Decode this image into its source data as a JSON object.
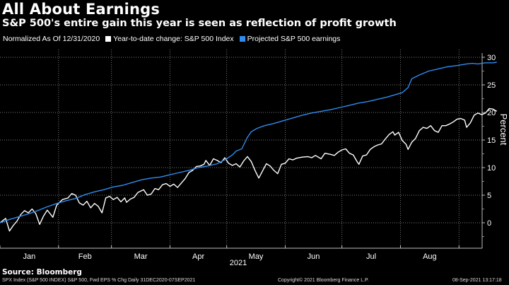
{
  "header": {
    "title": "All About Earnings",
    "subtitle": "S&P 500's entire gain this year is seen as reflection of profit growth"
  },
  "legend": {
    "prefix": "Normalized As Of 12/31/2020",
    "items": [
      {
        "label": "Year-to-date change: S&P 500 Index",
        "color": "#ffffff"
      },
      {
        "label": "Projected S&P 500 earnings",
        "color": "#2f8cf0"
      }
    ]
  },
  "footer": {
    "source": "Source: Bloomberg",
    "series_desc": "SPX Index (S&P 500 INDEX) S&P 500, Fwd EPS % Chg  Daily 31DEC2020-07SEP2021",
    "copyright": "Copyright© 2021 Bloomberg Finance L.P.",
    "timestamp": "08-Sep-2021 13:17:18"
  },
  "chart_data": {
    "type": "line",
    "title": "All About Earnings",
    "subtitle": "S&P 500's entire gain this year is seen as reflection of profit growth",
    "xlabel": "2021",
    "ylabel": "Percent",
    "x_tick_labels": [
      "Jan",
      "Feb",
      "Mar",
      "Apr",
      "May",
      "Jun",
      "Jul",
      "Aug"
    ],
    "y_ticks": [
      0,
      5,
      10,
      15,
      20,
      25,
      30
    ],
    "ylim": [
      -3.5,
      31.5
    ],
    "x_range_days": [
      0,
      250
    ],
    "grid": true,
    "legend_position": "top-left",
    "y_axis_side": "right",
    "series": [
      {
        "name": "Year-to-date change: S&P 500 Index",
        "color": "#ffffff",
        "points": [
          [
            0,
            0
          ],
          [
            3,
            0.8
          ],
          [
            5,
            -1.5
          ],
          [
            7,
            -0.5
          ],
          [
            9,
            0.3
          ],
          [
            11,
            1.5
          ],
          [
            13,
            2.2
          ],
          [
            15,
            1.8
          ],
          [
            17,
            2.5
          ],
          [
            19,
            1.6
          ],
          [
            21,
            -0.3
          ],
          [
            23,
            1.2
          ],
          [
            25,
            2.3
          ],
          [
            28,
            1.0
          ],
          [
            30,
            3.2
          ],
          [
            33,
            4.2
          ],
          [
            36,
            4.5
          ],
          [
            38,
            5.3
          ],
          [
            40,
            5.0
          ],
          [
            42,
            3.6
          ],
          [
            44,
            3.2
          ],
          [
            46,
            3.9
          ],
          [
            48,
            2.7
          ],
          [
            50,
            3.5
          ],
          [
            52,
            3.0
          ],
          [
            54,
            1.8
          ],
          [
            56,
            4.5
          ],
          [
            58,
            4.8
          ],
          [
            60,
            4.2
          ],
          [
            62,
            4.6
          ],
          [
            64,
            3.8
          ],
          [
            66,
            4.5
          ],
          [
            67,
            3.7
          ],
          [
            69,
            4.3
          ],
          [
            71,
            4.6
          ],
          [
            73,
            5.5
          ],
          [
            76,
            6.0
          ],
          [
            78,
            5.0
          ],
          [
            80,
            5.2
          ],
          [
            82,
            6.2
          ],
          [
            84,
            6.0
          ],
          [
            86,
            6.9
          ],
          [
            88,
            7.1
          ],
          [
            90,
            6.6
          ],
          [
            92,
            7.0
          ],
          [
            94,
            6.4
          ],
          [
            96,
            7.2
          ],
          [
            98,
            8.0
          ],
          [
            100,
            9.1
          ],
          [
            102,
            9.5
          ],
          [
            104,
            10.2
          ],
          [
            106,
            10.3
          ],
          [
            108,
            10.6
          ],
          [
            109,
            11.3
          ],
          [
            111,
            10.4
          ],
          [
            113,
            11.6
          ],
          [
            115,
            11.3
          ],
          [
            117,
            10.9
          ],
          [
            119,
            11.8
          ],
          [
            121,
            10.8
          ],
          [
            123,
            10.4
          ],
          [
            125,
            10.7
          ],
          [
            127,
            10.1
          ],
          [
            129,
            11.2
          ],
          [
            131,
            12.0
          ],
          [
            133,
            11.1
          ],
          [
            135,
            9.5
          ],
          [
            137,
            8.1
          ],
          [
            139,
            9.4
          ],
          [
            141,
            10.7
          ],
          [
            143,
            10.3
          ],
          [
            145,
            9.5
          ],
          [
            147,
            8.9
          ],
          [
            149,
            10.6
          ],
          [
            151,
            10.8
          ],
          [
            153,
            11.6
          ],
          [
            155,
            11.4
          ],
          [
            157,
            11.7
          ],
          [
            160,
            11.9
          ],
          [
            163,
            12.0
          ],
          [
            165,
            11.8
          ],
          [
            167,
            12.2
          ],
          [
            170,
            11.6
          ],
          [
            172,
            12.6
          ],
          [
            175,
            12.4
          ],
          [
            177,
            12.2
          ],
          [
            179,
            12.8
          ],
          [
            181,
            13.2
          ],
          [
            183,
            13.4
          ],
          [
            185,
            12.6
          ],
          [
            187,
            12.3
          ],
          [
            189,
            11.1
          ],
          [
            190,
            10.6
          ],
          [
            192,
            12.1
          ],
          [
            194,
            12.3
          ],
          [
            196,
            13.3
          ],
          [
            198,
            13.8
          ],
          [
            200,
            14.1
          ],
          [
            202,
            14.3
          ],
          [
            204,
            15.2
          ],
          [
            206,
            16.0
          ],
          [
            208,
            16.5
          ],
          [
            209,
            15.9
          ],
          [
            211,
            16.4
          ],
          [
            213,
            14.9
          ],
          [
            215,
            14.2
          ],
          [
            216,
            13.3
          ],
          [
            218,
            14.6
          ],
          [
            220,
            15.3
          ],
          [
            222,
            16.7
          ],
          [
            224,
            17.3
          ],
          [
            226,
            17.1
          ],
          [
            228,
            17.6
          ],
          [
            230,
            16.7
          ],
          [
            232,
            16.4
          ],
          [
            234,
            17.6
          ],
          [
            236,
            17.6
          ],
          [
            238,
            17.9
          ],
          [
            240,
            18.3
          ],
          [
            242,
            18.8
          ],
          [
            244,
            18.9
          ],
          [
            246,
            18.6
          ],
          [
            247,
            17.3
          ],
          [
            249,
            18.1
          ],
          [
            251,
            19.5
          ],
          [
            253,
            19.9
          ],
          [
            255,
            19.6
          ],
          [
            257,
            19.9
          ],
          [
            259,
            20.7
          ],
          [
            261,
            20.6
          ],
          [
            263,
            20.2
          ]
        ]
      },
      {
        "name": "Projected S&P 500 earnings",
        "color": "#2f8cf0",
        "points": [
          [
            0,
            0
          ],
          [
            5,
            0.6
          ],
          [
            10,
            1.1
          ],
          [
            15,
            1.6
          ],
          [
            20,
            2.2
          ],
          [
            25,
            2.9
          ],
          [
            30,
            3.5
          ],
          [
            35,
            4.0
          ],
          [
            40,
            4.4
          ],
          [
            45,
            5.1
          ],
          [
            50,
            5.6
          ],
          [
            55,
            6.0
          ],
          [
            60,
            6.5
          ],
          [
            65,
            6.8
          ],
          [
            70,
            7.3
          ],
          [
            75,
            7.8
          ],
          [
            80,
            8.1
          ],
          [
            85,
            8.3
          ],
          [
            90,
            8.7
          ],
          [
            95,
            9.1
          ],
          [
            100,
            9.5
          ],
          [
            105,
            10.0
          ],
          [
            110,
            10.3
          ],
          [
            115,
            10.7
          ],
          [
            120,
            11.6
          ],
          [
            123,
            12.3
          ],
          [
            125,
            13.0
          ],
          [
            128,
            13.4
          ],
          [
            131,
            15.5
          ],
          [
            133,
            16.5
          ],
          [
            136,
            17.1
          ],
          [
            140,
            17.6
          ],
          [
            145,
            18.0
          ],
          [
            150,
            18.5
          ],
          [
            155,
            19.0
          ],
          [
            160,
            19.5
          ],
          [
            165,
            19.9
          ],
          [
            170,
            20.2
          ],
          [
            175,
            20.5
          ],
          [
            180,
            20.9
          ],
          [
            185,
            21.3
          ],
          [
            190,
            21.7
          ],
          [
            195,
            22.0
          ],
          [
            200,
            22.4
          ],
          [
            205,
            22.8
          ],
          [
            210,
            23.3
          ],
          [
            213,
            23.6
          ],
          [
            216,
            24.5
          ],
          [
            218,
            26.1
          ],
          [
            222,
            26.8
          ],
          [
            227,
            27.5
          ],
          [
            232,
            27.9
          ],
          [
            237,
            28.3
          ],
          [
            242,
            28.5
          ],
          [
            247,
            28.8
          ],
          [
            250,
            28.9
          ],
          [
            253,
            28.8
          ],
          [
            257,
            29.0
          ],
          [
            261,
            29.0
          ],
          [
            263,
            29.1
          ]
        ]
      }
    ]
  }
}
